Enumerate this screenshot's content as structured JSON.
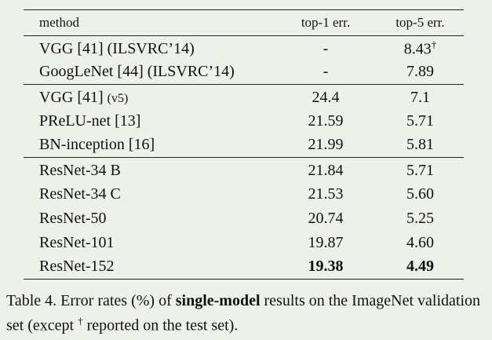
{
  "table": {
    "header": [
      "method",
      "top-1 err.",
      "top-5 err."
    ],
    "groups": [
      [
        [
          "VGG [41] (ILSVRC’14)",
          "-",
          {
            "text": "8.43",
            "sup": "†"
          }
        ],
        [
          "GoogLeNet [44] (ILSVRC’14)",
          "-",
          "7.89"
        ]
      ],
      [
        [
          {
            "text": "VGG [41]",
            "small": "(v5)"
          },
          "24.4",
          "7.1"
        ],
        [
          "PReLU-net [13]",
          "21.59",
          "5.71"
        ],
        [
          "BN-inception [16]",
          "21.99",
          "5.81"
        ]
      ],
      [
        [
          "ResNet-34 B",
          "21.84",
          "5.71"
        ],
        [
          "ResNet-34 C",
          "21.53",
          "5.60"
        ],
        [
          "ResNet-50",
          "20.74",
          "5.25"
        ],
        [
          "ResNet-101",
          "19.87",
          "4.60"
        ],
        [
          "ResNet-152",
          "19.38",
          "4.49"
        ]
      ]
    ]
  },
  "caption": {
    "label": "Table 4.",
    "text1": "Error rates (%) of",
    "bold": "single-model",
    "text2": "results on the ImageNet validation set (except",
    "sup": "†",
    "text3": "reported on the test set)."
  }
}
